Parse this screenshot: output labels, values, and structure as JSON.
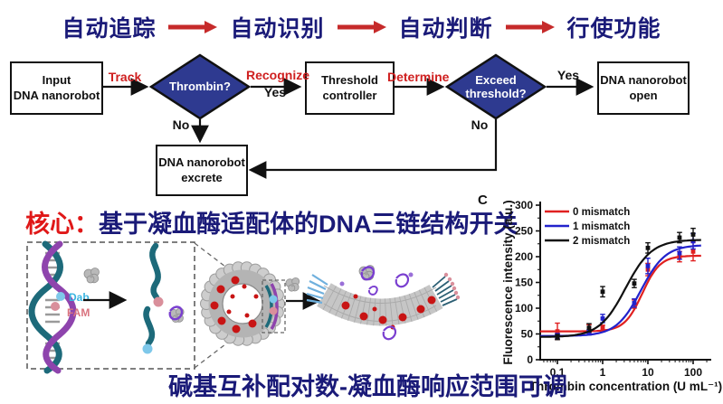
{
  "header": {
    "steps": [
      "自动追踪",
      "自动识别",
      "自动判断",
      "行使功能"
    ]
  },
  "flowchart": {
    "input_box": "Input\nDNA nanorobot",
    "track_label": "Track",
    "thrombin_diamond": "Thrombin?",
    "recognize_label": "Recognize",
    "recognize_yes": "Yes",
    "threshold_box": "Threshold\ncontroller",
    "determine_label": "Determine",
    "exceed_diamond": "Exceed\nthreshold?",
    "exceed_yes": "Yes",
    "no_label_1": "No",
    "no_label_2": "No",
    "open_box": "DNA nanorobot\nopen",
    "excrete_box": "DNA nanorobot\nexcrete"
  },
  "core": {
    "prefix": "核心：",
    "title": "基于凝血酶适配体的DNA三链结构开关"
  },
  "illustration": {
    "dab_label": "Dab",
    "fam_label": "FAM"
  },
  "panel_label": "C",
  "bottom_caption": "碱基互补配对数-凝血酶响应范围可调",
  "colors": {
    "navy": "#1a1a78",
    "accent_red": "#cf1f1f",
    "diamond_blue": "#2e3a90",
    "series_red": "#e02020",
    "series_blue": "#2222cc",
    "series_black": "#111111"
  },
  "chart_data": {
    "type": "line",
    "title": "",
    "xlabel": "Thrombin concentration (U mL⁻¹)",
    "ylabel": "Fluorescence intensity (a.u.)",
    "x_scale": "log",
    "xlim": [
      0.04,
      150
    ],
    "ylim": [
      0,
      300
    ],
    "y_ticks": [
      0,
      50,
      100,
      150,
      200,
      250,
      300
    ],
    "x_ticks": [
      0.1,
      1,
      10,
      100
    ],
    "grid": false,
    "legend_position": "top-left",
    "x": [
      0.1,
      0.5,
      1,
      5,
      10,
      50,
      100
    ],
    "series": [
      {
        "name": "0 mismatch",
        "color": "#e02020",
        "values": [
          55,
          60,
          62,
          108,
          175,
          200,
          210
        ],
        "errors": [
          16,
          8,
          5,
          8,
          12,
          10,
          18
        ],
        "fit": {
          "base": 55,
          "top": 202,
          "ec50": 7.5,
          "hill": 2.2
        }
      },
      {
        "name": "1 mismatch",
        "color": "#2222cc",
        "values": [
          46,
          53,
          80,
          110,
          182,
          207,
          230
        ],
        "errors": [
          5,
          5,
          8,
          8,
          15,
          12,
          15
        ],
        "fit": {
          "base": 46,
          "top": 223,
          "ec50": 7.0,
          "hill": 1.6
        }
      },
      {
        "name": "2 mismatch",
        "color": "#111111",
        "values": [
          44,
          62,
          132,
          148,
          217,
          237,
          243
        ],
        "errors": [
          5,
          8,
          10,
          8,
          10,
          10,
          12
        ],
        "fit": {
          "base": 44,
          "top": 233,
          "ec50": 3.2,
          "hill": 1.5
        }
      }
    ]
  }
}
